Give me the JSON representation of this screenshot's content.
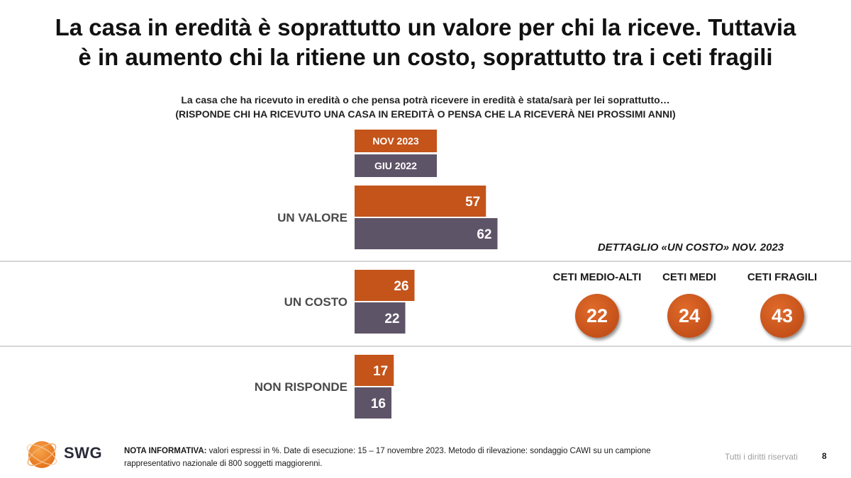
{
  "title": {
    "line1": "La casa in eredità è soprattutto un valore per chi la riceve. Tuttavia",
    "line2": "è in aumento chi la ritiene un costo, soprattutto tra i ceti fragili"
  },
  "question": {
    "line1": "La casa che ha ricevuto in eredità o che pensa potrà ricevere in eredità è stata/sarà per lei soprattutto…",
    "line2": "(RISPONDE CHI HA RICEVUTO UNA CASA IN EREDITÀ O PENSA CHE LA RICEVERÀ NEI PROSSIMI ANNI)"
  },
  "chart_data": {
    "type": "bar",
    "orientation": "horizontal",
    "categories": [
      "UN VALORE",
      "UN COSTO",
      "NON RISPONDE"
    ],
    "series": [
      {
        "name": "NOV 2023",
        "values": [
          57,
          26,
          17
        ],
        "color": "#c4541a"
      },
      {
        "name": "GIU 2022",
        "values": [
          62,
          22,
          16
        ],
        "color": "#5e5468"
      }
    ],
    "unit": "%",
    "xlim": [
      0,
      100
    ],
    "legend": "top",
    "data_labels": true
  },
  "detail": {
    "title": "DETTAGLIO «UN COSTO» NOV. 2023",
    "groups": [
      {
        "label": "CETI MEDIO-ALTI",
        "value": "22"
      },
      {
        "label": "CETI MEDI",
        "value": "24"
      },
      {
        "label": "CETI FRAGILI",
        "value": "43"
      }
    ],
    "accent": "#c4511a"
  },
  "footer": {
    "logo_text": "SWG",
    "note_label": "NOTA INFORMATIVA:",
    "note_text": " valori espressi in %. Date di esecuzione: 15 – 17 novembre 2023. Metodo di rilevazione: sondaggio CAWI su un campione rappresentativo nazionale di 800 soggetti maggiorenni.",
    "rights": "Tutti i diritti riservati",
    "page_number": "8"
  }
}
